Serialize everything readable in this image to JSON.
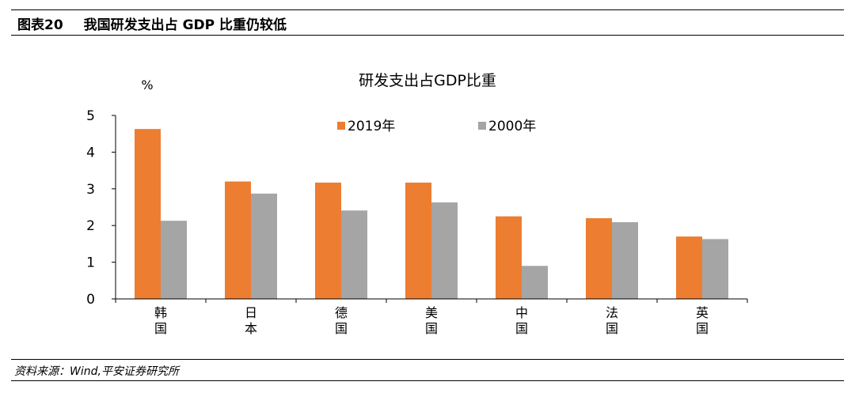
{
  "header": {
    "figure_number": "图表20",
    "title": "我国研发支出占 GDP 比重仍较低"
  },
  "footer": {
    "source": "资料来源：Wind,平安证券研究所"
  },
  "colors": {
    "series_2019": "#ED7D31",
    "series_2000": "#A5A5A5"
  },
  "chart_data": {
    "type": "bar",
    "title": "研发支出占GDP比重",
    "ylabel": "%",
    "xlabel": "",
    "ylim": [
      0,
      5
    ],
    "yticks": [
      "0",
      "1",
      "2",
      "3",
      "4",
      "5"
    ],
    "grid": false,
    "legend_position": "top-center",
    "categories": [
      "韩国",
      "日本",
      "德国",
      "美国",
      "中国",
      "法国",
      "英国"
    ],
    "series": [
      {
        "name": "2019年",
        "values": [
          4.63,
          3.2,
          3.17,
          3.17,
          2.25,
          2.2,
          1.7
        ]
      },
      {
        "name": "2000年",
        "values": [
          2.13,
          2.87,
          2.41,
          2.63,
          0.9,
          2.09,
          1.63
        ]
      }
    ]
  }
}
